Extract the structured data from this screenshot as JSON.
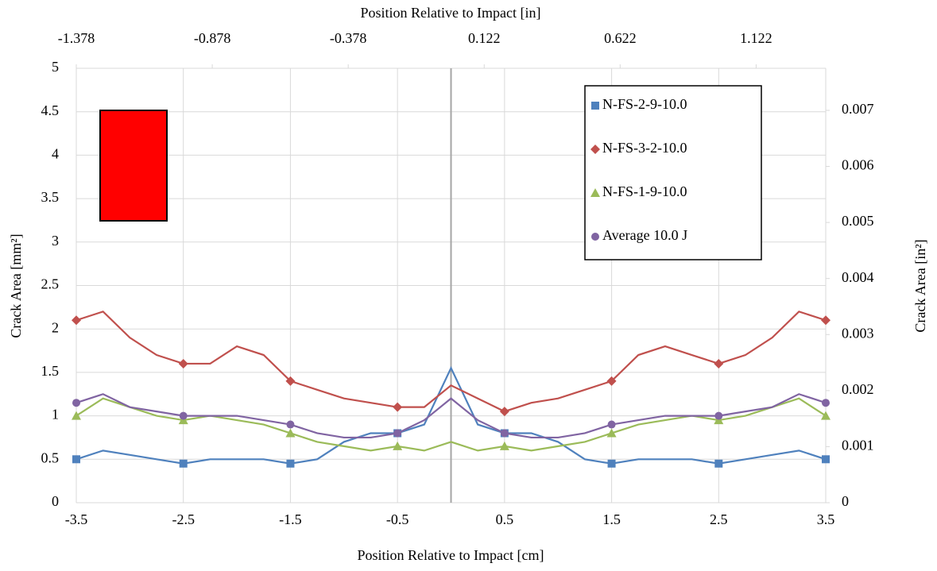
{
  "chart_data": {
    "type": "line",
    "xlabel": "Position Relative to Impact [cm]",
    "x2label": "Position Relative to Impact [in]",
    "ylabel": "Crack Area [mm²]",
    "y2label": "Crack Area [in²]",
    "x": [
      -3.5,
      -3.25,
      -3.0,
      -2.75,
      -2.5,
      -2.25,
      -2.0,
      -1.75,
      -1.5,
      -1.25,
      -1.0,
      -0.75,
      -0.5,
      -0.25,
      0,
      0.25,
      0.5,
      0.75,
      1.0,
      1.25,
      1.5,
      1.75,
      2.0,
      2.25,
      2.5,
      2.75,
      3.0,
      3.25,
      3.5
    ],
    "xlim": [
      -3.5,
      3.5
    ],
    "xticks": [
      -3.5,
      -2.5,
      -1.5,
      -0.5,
      0.5,
      1.5,
      2.5,
      3.5
    ],
    "x2lim": [
      -1.378,
      1.378
    ],
    "x2ticks": [
      -1.378,
      -0.878,
      -0.378,
      0.122,
      0.622,
      1.122
    ],
    "ylim": [
      0,
      5
    ],
    "yticks": [
      0,
      0.5,
      1,
      1.5,
      2,
      2.5,
      3,
      3.5,
      4,
      4.5,
      5
    ],
    "y2lim": [
      0,
      0.00775
    ],
    "y2ticks": [
      0,
      0.001,
      0.002,
      0.003,
      0.004,
      0.005,
      0.006,
      0.007
    ],
    "grid": true,
    "legend": "upper right",
    "series": [
      {
        "name": "N-FS-2-9-10.0",
        "color": "#4f81bd",
        "marker": "square",
        "values": [
          0.5,
          0.6,
          0.55,
          0.5,
          0.45,
          0.5,
          0.5,
          0.5,
          0.45,
          0.5,
          0.7,
          0.8,
          0.8,
          0.9,
          1.55,
          0.9,
          0.8,
          0.8,
          0.7,
          0.5,
          0.45,
          0.5,
          0.5,
          0.5,
          0.45,
          0.5,
          0.55,
          0.6,
          0.5
        ]
      },
      {
        "name": "N-FS-3-2-10.0",
        "color": "#c0504d",
        "marker": "diamond",
        "values": [
          2.1,
          2.2,
          1.9,
          1.7,
          1.6,
          1.6,
          1.8,
          1.7,
          1.4,
          1.3,
          1.2,
          1.15,
          1.1,
          1.1,
          1.35,
          1.2,
          1.05,
          1.15,
          1.2,
          1.3,
          1.4,
          1.7,
          1.8,
          1.7,
          1.6,
          1.7,
          1.9,
          2.2,
          2.1
        ]
      },
      {
        "name": "N-FS-1-9-10.0",
        "color": "#9bbb59",
        "marker": "triangle",
        "values": [
          1.0,
          1.2,
          1.1,
          1.0,
          0.95,
          1.0,
          0.95,
          0.9,
          0.8,
          0.7,
          0.65,
          0.6,
          0.65,
          0.6,
          0.7,
          0.6,
          0.65,
          0.6,
          0.65,
          0.7,
          0.8,
          0.9,
          0.95,
          1.0,
          0.95,
          1.0,
          1.1,
          1.2,
          1.0
        ]
      },
      {
        "name": "Average 10.0 J",
        "color": "#8064a2",
        "marker": "circle",
        "values": [
          1.15,
          1.25,
          1.1,
          1.05,
          1.0,
          1.0,
          1.0,
          0.95,
          0.9,
          0.8,
          0.75,
          0.75,
          0.8,
          0.95,
          1.2,
          0.95,
          0.8,
          0.75,
          0.75,
          0.8,
          0.9,
          0.95,
          1.0,
          1.0,
          1.0,
          1.05,
          1.1,
          1.25,
          1.15
        ]
      }
    ]
  }
}
